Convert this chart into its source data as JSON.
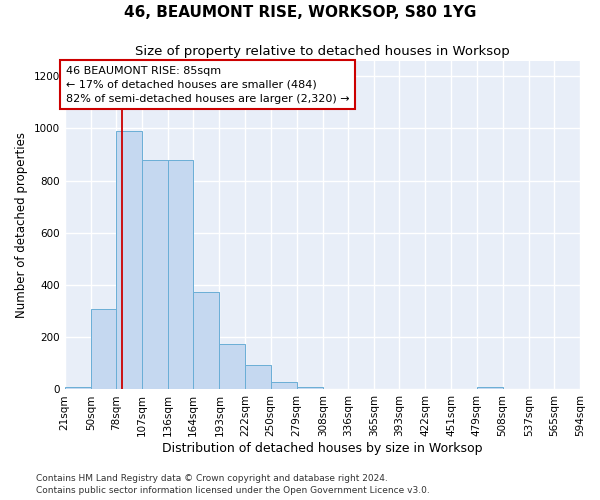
{
  "title": "46, BEAUMONT RISE, WORKSOP, S80 1YG",
  "subtitle": "Size of property relative to detached houses in Worksop",
  "xlabel": "Distribution of detached houses by size in Worksop",
  "ylabel": "Number of detached properties",
  "bin_edges": [
    21,
    50,
    78,
    107,
    136,
    164,
    193,
    222,
    250,
    279,
    308,
    336,
    365,
    393,
    422,
    451,
    479,
    508,
    537,
    565,
    594
  ],
  "bar_heights": [
    10,
    310,
    990,
    880,
    880,
    375,
    175,
    95,
    28,
    8,
    0,
    0,
    0,
    0,
    0,
    0,
    10,
    0,
    0,
    0
  ],
  "bar_color": "#c5d8f0",
  "bar_edgecolor": "#6aaed6",
  "vline_x": 85,
  "vline_color": "#cc0000",
  "annotation_text": "46 BEAUMONT RISE: 85sqm\n← 17% of detached houses are smaller (484)\n82% of semi-detached houses are larger (2,320) →",
  "annotation_box_color": "#cc0000",
  "ylim": [
    0,
    1260
  ],
  "yticks": [
    0,
    200,
    400,
    600,
    800,
    1000,
    1200
  ],
  "footer_line1": "Contains HM Land Registry data © Crown copyright and database right 2024.",
  "footer_line2": "Contains public sector information licensed under the Open Government Licence v3.0.",
  "background_color": "#e8eef8",
  "grid_color": "#ffffff",
  "title_fontsize": 11,
  "subtitle_fontsize": 9.5,
  "xlabel_fontsize": 9,
  "ylabel_fontsize": 8.5,
  "tick_fontsize": 7.5,
  "annotation_fontsize": 8,
  "footer_fontsize": 6.5
}
